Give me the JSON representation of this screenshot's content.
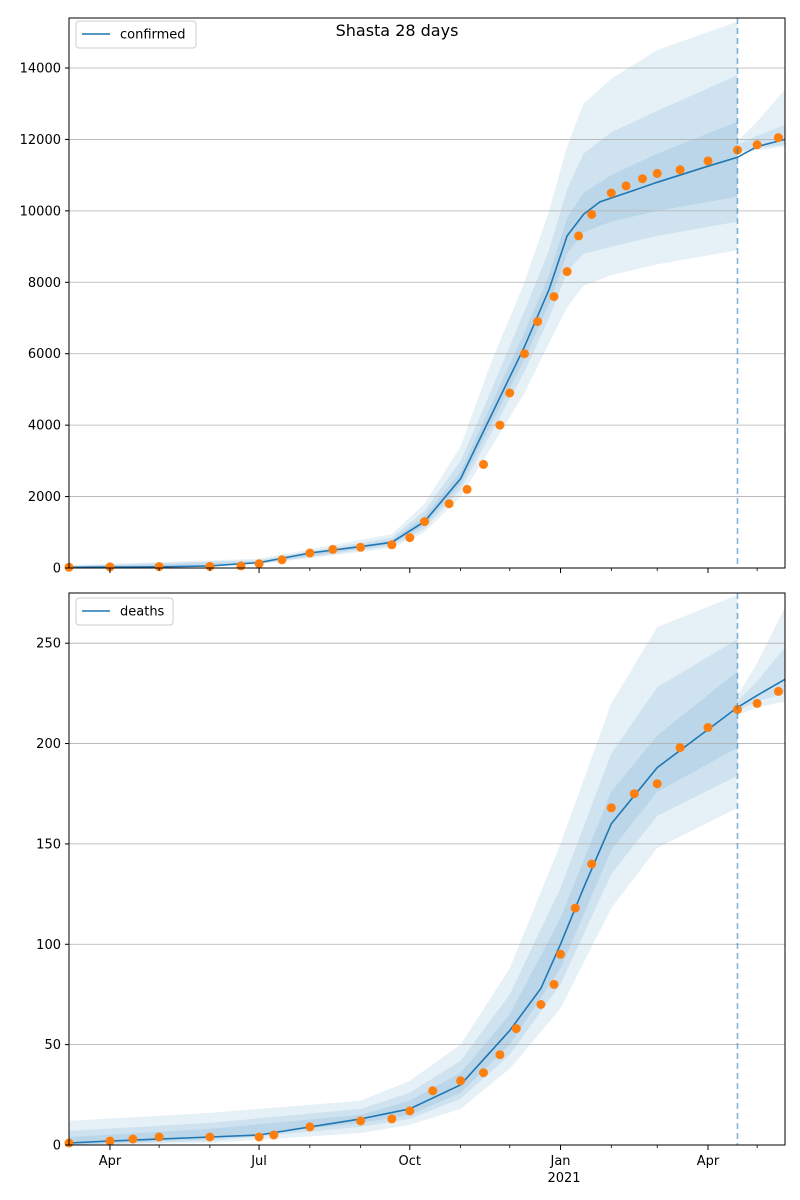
{
  "figure": {
    "title": "Shasta 28 days",
    "forecast_line_date": "2021-04-19",
    "colors": {
      "model": "#1f77b4",
      "observed": "#ff7f0e",
      "band": "#1f77b4",
      "grid": "#b0b0b0",
      "axis": "#000000"
    }
  },
  "x_axis": {
    "range": [
      "2020-03-07",
      "2021-05-18"
    ],
    "ticks": [
      {
        "date": "2020-04-01",
        "label": "Apr"
      },
      {
        "date": "2020-07-01",
        "label": "Jul"
      },
      {
        "date": "2020-10-01",
        "label": "Oct"
      },
      {
        "date": "2021-01-01",
        "label": "Jan"
      },
      {
        "date": "2021-04-01",
        "label": "Apr"
      }
    ],
    "year_label": "2021",
    "minor_ticks": [
      "2020-05-01",
      "2020-06-01",
      "2020-08-01",
      "2020-09-01",
      "2020-11-01",
      "2020-12-01",
      "2021-02-01",
      "2021-03-01",
      "2021-05-01"
    ]
  },
  "chart_data": [
    {
      "type": "line",
      "legend": "confirmed",
      "legend_position": "top-left",
      "grid": "y",
      "ylim": [
        0,
        15400
      ],
      "yticks": [
        0,
        2000,
        4000,
        6000,
        8000,
        10000,
        12000,
        14000
      ],
      "model_series": {
        "name": "confirmed",
        "x": [
          "2020-03-07",
          "2020-04-01",
          "2020-05-01",
          "2020-06-01",
          "2020-07-01",
          "2020-08-01",
          "2020-09-01",
          "2020-09-20",
          "2020-10-10",
          "2020-11-01",
          "2020-11-20",
          "2020-12-10",
          "2020-12-25",
          "2021-01-05",
          "2021-01-15",
          "2021-01-25",
          "2021-02-10",
          "2021-03-01",
          "2021-04-01",
          "2021-04-19",
          "2021-05-01",
          "2021-05-18"
        ],
        "y": [
          20,
          25,
          35,
          60,
          150,
          420,
          600,
          720,
          1300,
          2500,
          4300,
          6200,
          7800,
          9300,
          9900,
          10250,
          10500,
          10800,
          11250,
          11500,
          11800,
          12000
        ]
      },
      "bands": [
        {
          "x": [
            "2020-03-07",
            "2020-07-01",
            "2020-09-20",
            "2020-10-10",
            "2020-11-01",
            "2020-11-20",
            "2020-12-10",
            "2020-12-25",
            "2021-01-05",
            "2021-01-15",
            "2021-02-01",
            "2021-03-01",
            "2021-04-19"
          ],
          "lower": [
            0,
            100,
            560,
            1000,
            2000,
            3400,
            4900,
            6300,
            7300,
            7900,
            8200,
            8500,
            8900
          ],
          "upper": [
            80,
            260,
            950,
            1800,
            3400,
            5800,
            8000,
            10000,
            11800,
            13000,
            13700,
            14500,
            15300
          ]
        },
        {
          "x": [
            "2020-03-07",
            "2020-07-01",
            "2020-09-20",
            "2020-10-10",
            "2020-11-01",
            "2020-11-20",
            "2020-12-10",
            "2020-12-25",
            "2021-01-05",
            "2021-01-15",
            "2021-02-01",
            "2021-03-01",
            "2021-04-19"
          ],
          "lower": [
            5,
            120,
            620,
            1100,
            2200,
            3800,
            5500,
            7000,
            8300,
            8800,
            9000,
            9300,
            9700
          ],
          "upper": [
            60,
            220,
            850,
            1600,
            3000,
            5000,
            7200,
            8900,
            10600,
            11600,
            12200,
            12800,
            13800
          ]
        },
        {
          "x": [
            "2020-03-07",
            "2020-07-01",
            "2020-09-20",
            "2020-10-10",
            "2020-11-01",
            "2020-11-20",
            "2020-12-10",
            "2020-12-25",
            "2021-01-05",
            "2021-01-15",
            "2021-02-01",
            "2021-03-01",
            "2021-04-19"
          ],
          "lower": [
            10,
            135,
            670,
            1200,
            2350,
            4050,
            5850,
            7400,
            8800,
            9400,
            9700,
            10000,
            10400
          ],
          "upper": [
            40,
            180,
            780,
            1450,
            2700,
            4600,
            6600,
            8200,
            9800,
            10500,
            11000,
            11600,
            12500
          ]
        },
        {
          "x": [
            "2021-04-19",
            "2021-05-01",
            "2021-05-18"
          ],
          "lower": [
            11600,
            11700,
            11800
          ],
          "upper": [
            11950,
            12500,
            13400
          ]
        },
        {
          "x": [
            "2021-04-19",
            "2021-05-01",
            "2021-05-18"
          ],
          "lower": [
            11650,
            11750,
            11850
          ],
          "upper": [
            11850,
            12100,
            12400
          ]
        }
      ],
      "observed": {
        "x": [
          "2020-03-07",
          "2020-04-01",
          "2020-05-01",
          "2020-06-01",
          "2020-06-20",
          "2020-07-01",
          "2020-07-15",
          "2020-08-01",
          "2020-08-15",
          "2020-09-01",
          "2020-09-20",
          "2020-10-01",
          "2020-10-10",
          "2020-10-25",
          "2020-11-05",
          "2020-11-15",
          "2020-11-25",
          "2020-12-01",
          "2020-12-10",
          "2020-12-18",
          "2020-12-28",
          "2021-01-05",
          "2021-01-12",
          "2021-01-20",
          "2021-02-01",
          "2021-02-10",
          "2021-02-20",
          "2021-03-01",
          "2021-03-15",
          "2021-04-01",
          "2021-04-19",
          "2021-05-01",
          "2021-05-14"
        ],
        "y": [
          20,
          30,
          40,
          45,
          60,
          120,
          230,
          420,
          520,
          580,
          650,
          850,
          1300,
          1800,
          2200,
          2900,
          4000,
          4900,
          6000,
          6900,
          7600,
          8300,
          9300,
          9900,
          10500,
          10700,
          10900,
          11050,
          11150,
          11400,
          11700,
          11850,
          12050
        ]
      }
    },
    {
      "type": "line",
      "legend": "deaths",
      "legend_position": "top-left",
      "grid": "y",
      "ylim": [
        0,
        275
      ],
      "yticks": [
        0,
        50,
        100,
        150,
        200,
        250
      ],
      "model_series": {
        "name": "deaths",
        "x": [
          "2020-03-07",
          "2020-04-01",
          "2020-06-01",
          "2020-07-01",
          "2020-08-01",
          "2020-09-01",
          "2020-10-01",
          "2020-11-01",
          "2020-12-01",
          "2020-12-20",
          "2021-01-01",
          "2021-01-15",
          "2021-02-01",
          "2021-03-01",
          "2021-04-01",
          "2021-04-19",
          "2021-05-01",
          "2021-05-18"
        ],
        "y": [
          1,
          2,
          4,
          5,
          9,
          13,
          18,
          30,
          57,
          78,
          100,
          128,
          160,
          188,
          207,
          218,
          224,
          232
        ]
      },
      "bands": [
        {
          "x": [
            "2020-03-07",
            "2020-06-01",
            "2020-09-01",
            "2020-10-01",
            "2020-11-01",
            "2020-12-01",
            "2021-01-01",
            "2021-02-01",
            "2021-03-01",
            "2021-04-19"
          ],
          "lower": [
            0,
            1,
            6,
            10,
            18,
            38,
            68,
            118,
            148,
            168
          ],
          "upper": [
            12,
            16,
            22,
            32,
            50,
            88,
            150,
            220,
            258,
            274
          ]
        },
        {
          "x": [
            "2020-03-07",
            "2020-06-01",
            "2020-09-01",
            "2020-10-01",
            "2020-11-01",
            "2020-12-01",
            "2021-01-01",
            "2021-02-01",
            "2021-03-01",
            "2021-04-19"
          ],
          "lower": [
            0,
            2,
            9,
            13,
            23,
            45,
            80,
            135,
            164,
            184
          ],
          "upper": [
            7,
            11,
            18,
            26,
            42,
            75,
            128,
            195,
            228,
            252
          ]
        },
        {
          "x": [
            "2020-03-07",
            "2020-06-01",
            "2020-09-01",
            "2020-10-01",
            "2020-11-01",
            "2020-12-01",
            "2021-01-01",
            "2021-02-01",
            "2021-03-01",
            "2021-04-19"
          ],
          "lower": [
            0,
            3,
            11,
            15,
            26,
            50,
            88,
            147,
            176,
            198
          ],
          "upper": [
            4,
            8,
            15,
            22,
            36,
            65,
            113,
            176,
            204,
            236
          ]
        },
        {
          "x": [
            "2021-04-19",
            "2021-05-01",
            "2021-05-18"
          ],
          "lower": [
            214,
            218,
            221
          ],
          "upper": [
            224,
            240,
            268
          ]
        },
        {
          "x": [
            "2021-04-19",
            "2021-05-01",
            "2021-05-18"
          ],
          "lower": [
            216,
            221,
            225
          ],
          "upper": [
            221,
            231,
            248
          ]
        }
      ],
      "observed": {
        "x": [
          "2020-03-07",
          "2020-04-01",
          "2020-04-15",
          "2020-05-01",
          "2020-06-01",
          "2020-07-01",
          "2020-07-10",
          "2020-08-01",
          "2020-09-01",
          "2020-09-20",
          "2020-10-01",
          "2020-10-15",
          "2020-11-01",
          "2020-11-15",
          "2020-11-25",
          "2020-12-05",
          "2020-12-20",
          "2020-12-28",
          "2021-01-01",
          "2021-01-10",
          "2021-01-20",
          "2021-02-01",
          "2021-02-15",
          "2021-03-01",
          "2021-03-15",
          "2021-04-01",
          "2021-04-19",
          "2021-05-01",
          "2021-05-14"
        ],
        "y": [
          1,
          2,
          3,
          4,
          4,
          4,
          5,
          9,
          12,
          13,
          17,
          27,
          32,
          36,
          45,
          58,
          70,
          80,
          95,
          118,
          140,
          168,
          175,
          180,
          198,
          208,
          217,
          220,
          226
        ]
      }
    }
  ]
}
